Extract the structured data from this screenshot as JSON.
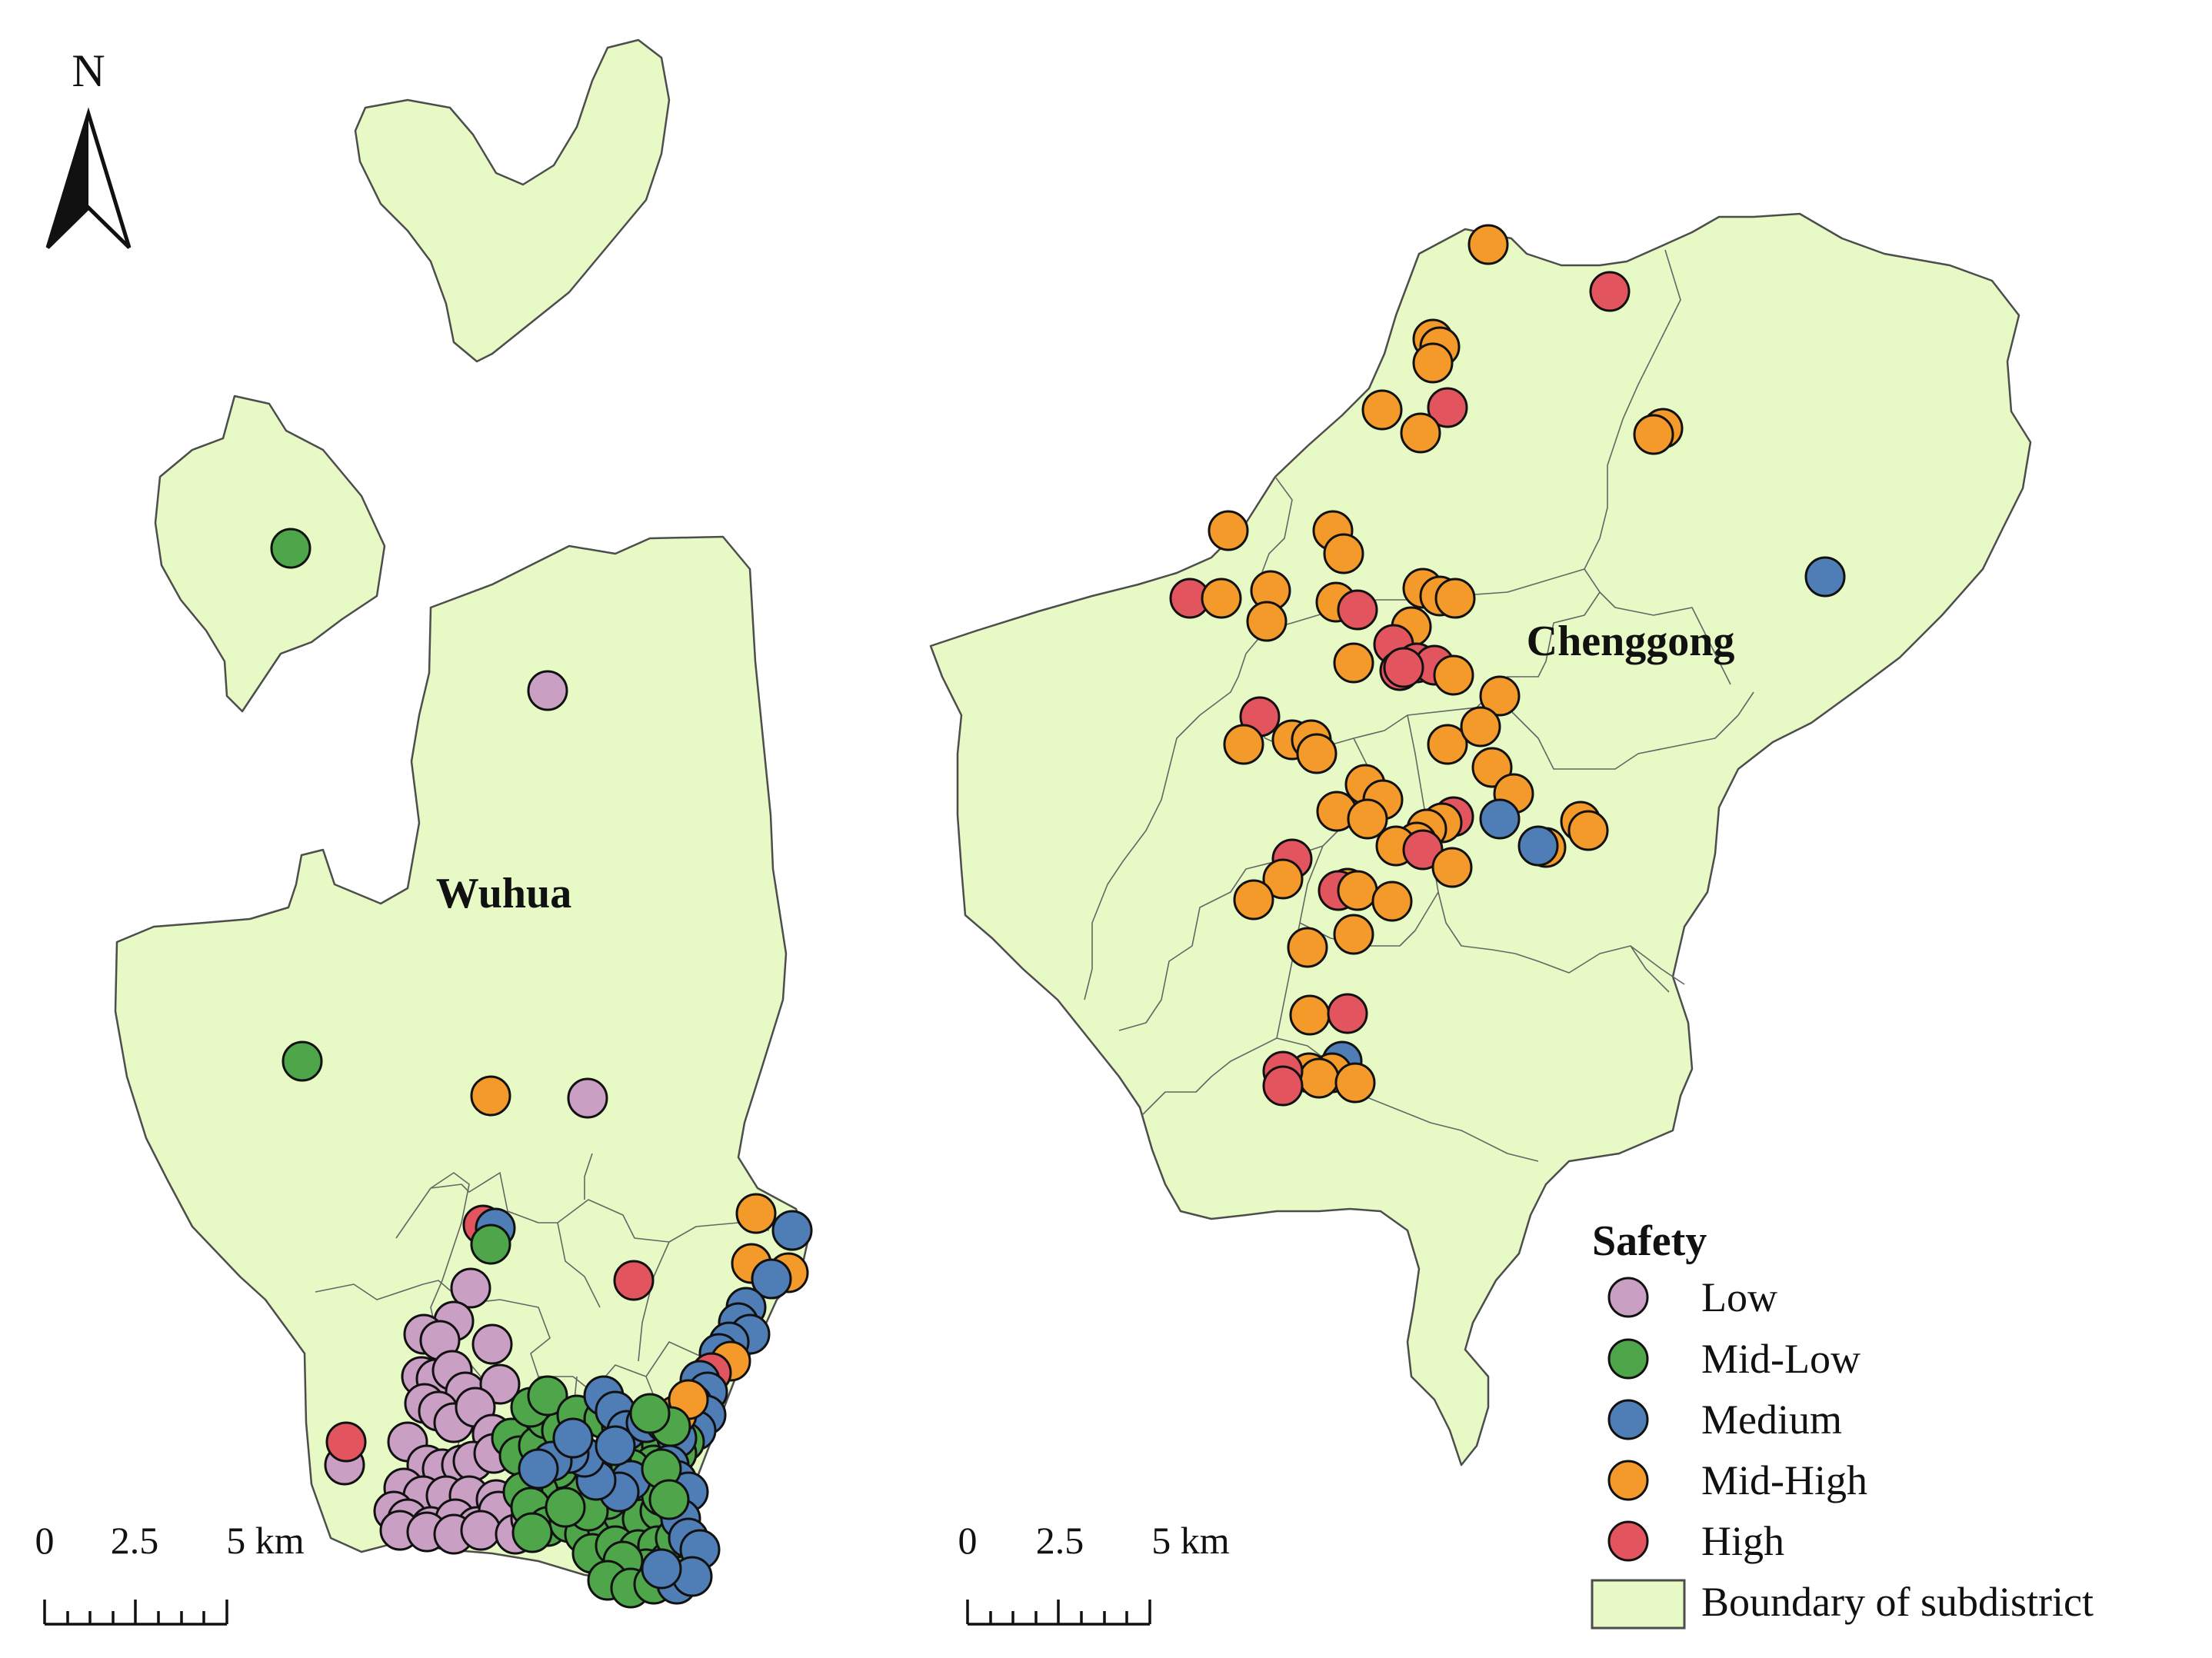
{
  "districts": [
    {
      "name": "Wuhua"
    },
    {
      "name": "Chenggong"
    }
  ],
  "north_arrow": {
    "label": "N"
  },
  "scale_bars": [
    {
      "ticks": [
        "0",
        "2.5",
        "5 km"
      ]
    },
    {
      "ticks": [
        "0",
        "2.5",
        "5 km"
      ]
    }
  ],
  "legend": {
    "title": "Safety",
    "classes": [
      {
        "label": "Low",
        "color": "#c9a0c4"
      },
      {
        "label": "Mid-Low",
        "color": "#4ea54a"
      },
      {
        "label": "Medium",
        "color": "#4f7db5"
      },
      {
        "label": "Mid-High",
        "color": "#f39a2b"
      },
      {
        "label": "High",
        "color": "#e2555e"
      }
    ],
    "boundary_label": "Boundary of subdistrict",
    "boundary_color": "#e7f9c4"
  }
}
